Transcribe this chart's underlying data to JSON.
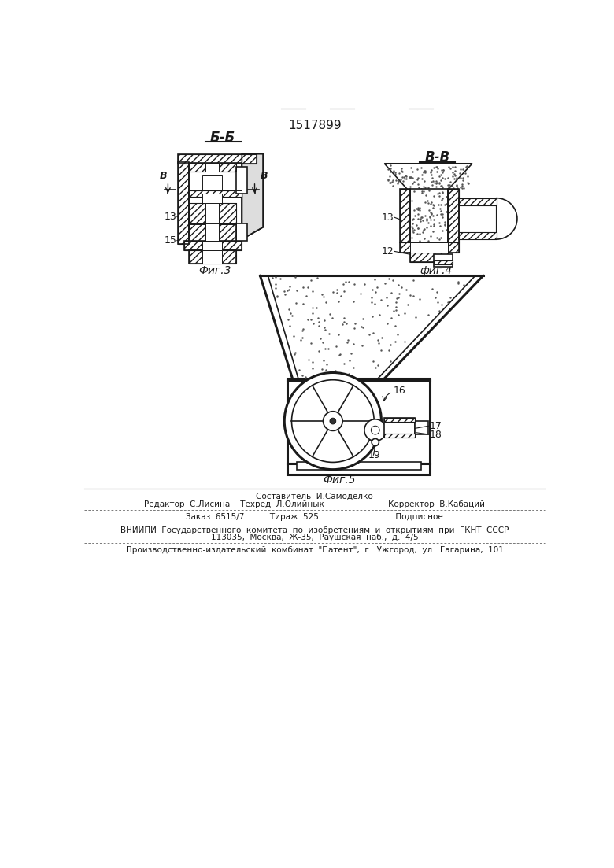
{
  "patent_number": "1517899",
  "bg_color": "#ffffff",
  "line_color": "#1a1a1a",
  "fig3_label": "Фиг.3",
  "fig4_label": "фиг.4",
  "fig5_label": "Фиг.5",
  "section_bb": "Б-Б",
  "section_vv": "В-В",
  "label_v": "В",
  "bottom_text1": "Составитель  И.Самоделко",
  "bottom_text2": "Редактор  С.Лисина    Техред  Л.Олийнык                         Корректор  В.Кабаций",
  "bottom_text3": "Заказ  6515/7          Тираж  525                              Подписное",
  "bottom_text4": "ВНИИПИ  Государственного  комитета  по  изобретениям  и  открытиям  при  ГКНТ  СССР",
  "bottom_text5": "113035,  Москва,  Ж-35,  Раушская  наб.,  д.  4/5",
  "bottom_text6": "Производственно-издательский  комбинат  \"Патент\",  г.  Ужгород,  ул.  Гагарина,  101"
}
